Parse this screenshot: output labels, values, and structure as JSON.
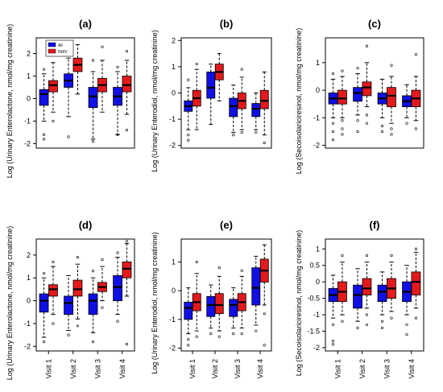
{
  "chart_data": [
    {
      "type": "box",
      "title": "(a)",
      "ylabel": "Log (Urinary Enterolactone, nmol/mg creatinine)",
      "ylim": [
        -2.2,
        2.7
      ],
      "yticks": [
        -2,
        -1,
        0,
        1,
        2
      ],
      "legend": {
        "placement": "top-left",
        "entries": [
          {
            "label": "All",
            "color": "#1010e6"
          },
          {
            "label": "NWV",
            "color": "#e31a1c"
          }
        ]
      },
      "boxes": [
        {
          "visit": 1,
          "group": "blue",
          "whislo": -1.0,
          "q1": -0.3,
          "med": 0.2,
          "q3": 0.4,
          "whishi": 1.1,
          "fliers": [
            -1.8,
            -1.6,
            1.3
          ]
        },
        {
          "visit": 1,
          "group": "red",
          "whislo": -0.6,
          "q1": 0.3,
          "med": 0.6,
          "q3": 0.8,
          "whishi": 1.6,
          "fliers": [
            -1.0,
            2.0
          ]
        },
        {
          "visit": 2,
          "group": "blue",
          "whislo": -0.8,
          "q1": 0.5,
          "med": 0.8,
          "q3": 1.1,
          "whishi": 1.8,
          "fliers": [
            -1.7
          ]
        },
        {
          "visit": 2,
          "group": "red",
          "whislo": 0.2,
          "q1": 1.2,
          "med": 1.5,
          "q3": 1.8,
          "whishi": 2.4,
          "fliers": []
        },
        {
          "visit": 3,
          "group": "blue",
          "whislo": -1.8,
          "q1": -0.4,
          "med": 0.1,
          "q3": 0.5,
          "whishi": 1.2,
          "fliers": [
            -1.9,
            1.7
          ]
        },
        {
          "visit": 3,
          "group": "red",
          "whislo": -0.6,
          "q1": 0.3,
          "med": 0.6,
          "q3": 0.9,
          "whishi": 1.7,
          "fliers": [
            2.3
          ]
        },
        {
          "visit": 4,
          "group": "blue",
          "whislo": -1.6,
          "q1": -0.3,
          "med": 0.1,
          "q3": 0.5,
          "whishi": 1.2,
          "fliers": [
            -1.6,
            1.4
          ]
        },
        {
          "visit": 4,
          "group": "red",
          "whislo": -0.7,
          "q1": 0.3,
          "med": 0.6,
          "q3": 1.0,
          "whishi": 1.7,
          "fliers": [
            -1.4,
            2.1
          ]
        }
      ]
    },
    {
      "type": "box",
      "title": "(b)",
      "ylabel": "Log (Urinary Enterodiol, nmol/mg creatinine)",
      "ylim": [
        -2.1,
        2.1
      ],
      "yticks": [
        -2,
        -1,
        0,
        1,
        2
      ],
      "boxes": [
        {
          "visit": 1,
          "group": "blue",
          "whislo": -1.4,
          "q1": -0.7,
          "med": -0.5,
          "q3": -0.3,
          "whishi": 0.2,
          "fliers": [
            -1.6,
            -1.8,
            0.5
          ]
        },
        {
          "visit": 1,
          "group": "red",
          "whislo": -1.4,
          "q1": -0.5,
          "med": -0.2,
          "q3": 0.1,
          "whishi": 0.9,
          "fliers": [
            1.1
          ]
        },
        {
          "visit": 2,
          "group": "blue",
          "whislo": -1.2,
          "q1": -0.2,
          "med": 0.2,
          "q3": 0.8,
          "whishi": 1.1,
          "fliers": []
        },
        {
          "visit": 2,
          "group": "red",
          "whislo": -0.3,
          "q1": 0.5,
          "med": 0.8,
          "q3": 1.1,
          "whishi": 1.5,
          "fliers": []
        },
        {
          "visit": 3,
          "group": "blue",
          "whislo": -1.5,
          "q1": -0.9,
          "med": -0.5,
          "q3": -0.2,
          "whishi": 0.3,
          "fliers": [
            -1.6
          ]
        },
        {
          "visit": 3,
          "group": "red",
          "whislo": -1.4,
          "q1": -0.6,
          "med": -0.3,
          "q3": 0.0,
          "whishi": 0.6,
          "fliers": [
            -1.5,
            0.9
          ]
        },
        {
          "visit": 4,
          "group": "blue",
          "whislo": -1.4,
          "q1": -0.9,
          "med": -0.6,
          "q3": -0.4,
          "whishi": 0.0,
          "fliers": [
            -1.5
          ]
        },
        {
          "visit": 4,
          "group": "red",
          "whislo": -1.6,
          "q1": -0.6,
          "med": -0.3,
          "q3": 0.1,
          "whishi": 0.8,
          "fliers": [
            -1.9
          ]
        }
      ]
    },
    {
      "type": "box",
      "title": "(c)",
      "ylabel": "Log (Secoisolariciresinol, nmol/mg creatinine)",
      "ylim": [
        -2.1,
        1.9
      ],
      "yticks": [
        -2,
        -1,
        0,
        1
      ],
      "boxes": [
        {
          "visit": 1,
          "group": "blue",
          "whislo": -1.0,
          "q1": -0.5,
          "med": -0.3,
          "q3": -0.1,
          "whishi": 0.4,
          "fliers": [
            -1.2,
            -1.5,
            -1.8,
            0.6
          ]
        },
        {
          "visit": 1,
          "group": "red",
          "whislo": -1.0,
          "q1": -0.5,
          "med": -0.3,
          "q3": 0.0,
          "whishi": 0.5,
          "fliers": [
            -1.1,
            -1.4,
            -1.6,
            0.7
          ]
        },
        {
          "visit": 2,
          "group": "blue",
          "whislo": -0.9,
          "q1": -0.4,
          "med": -0.1,
          "q3": 0.1,
          "whishi": 0.6,
          "fliers": [
            -1.1,
            -1.5,
            0.8
          ]
        },
        {
          "visit": 2,
          "group": "red",
          "whislo": -0.6,
          "q1": -0.2,
          "med": 0.1,
          "q3": 0.3,
          "whishi": 1.0,
          "fliers": [
            -0.9,
            -1.2,
            1.6
          ]
        },
        {
          "visit": 3,
          "group": "blue",
          "whislo": -1.0,
          "q1": -0.5,
          "med": -0.3,
          "q3": -0.1,
          "whishi": 0.4,
          "fliers": [
            -1.3,
            -1.5
          ]
        },
        {
          "visit": 3,
          "group": "red",
          "whislo": -1.2,
          "q1": -0.6,
          "med": -0.2,
          "q3": 0.1,
          "whishi": 0.5,
          "fliers": [
            -1.4,
            -1.6,
            0.9
          ]
        },
        {
          "visit": 4,
          "group": "blue",
          "whislo": -1.0,
          "q1": -0.6,
          "med": -0.4,
          "q3": -0.2,
          "whishi": 0.2,
          "fliers": [
            -1.2
          ]
        },
        {
          "visit": 4,
          "group": "red",
          "whislo": -1.1,
          "q1": -0.6,
          "med": -0.3,
          "q3": 0.0,
          "whishi": 0.5,
          "fliers": [
            -1.4,
            1.3
          ]
        }
      ]
    },
    {
      "type": "box",
      "title": "(d)",
      "ylabel": "Log (Urinary Enterolactone, nmol/mg creatinine)",
      "ylim": [
        -2.2,
        2.7
      ],
      "yticks": [
        -2,
        -1,
        0,
        1,
        2
      ],
      "xticks": [
        "Visit 1",
        "Visit 2",
        "Visit 3",
        "Visit 4"
      ],
      "boxes": [
        {
          "visit": 1,
          "group": "blue",
          "whislo": -1.6,
          "q1": -0.5,
          "med": 0.0,
          "q3": 0.3,
          "whishi": 1.0,
          "fliers": [
            -1.8,
            1.2
          ]
        },
        {
          "visit": 1,
          "group": "red",
          "whislo": -0.6,
          "q1": 0.2,
          "med": 0.5,
          "q3": 0.7,
          "whishi": 1.5,
          "fliers": [
            -1.0,
            1.7
          ]
        },
        {
          "visit": 2,
          "group": "blue",
          "whislo": -1.3,
          "q1": -0.6,
          "med": -0.1,
          "q3": 0.2,
          "whishi": 1.1,
          "fliers": [
            -1.5
          ]
        },
        {
          "visit": 2,
          "group": "red",
          "whislo": -0.8,
          "q1": 0.2,
          "med": 0.5,
          "q3": 0.9,
          "whishi": 1.6,
          "fliers": [
            -1.1,
            1.9
          ]
        },
        {
          "visit": 3,
          "group": "blue",
          "whislo": -1.4,
          "q1": -0.6,
          "med": 0.0,
          "q3": 0.3,
          "whishi": 1.0,
          "fliers": [
            -1.8,
            1.3
          ]
        },
        {
          "visit": 3,
          "group": "red",
          "whislo": 0.0,
          "q1": 0.4,
          "med": 0.6,
          "q3": 0.8,
          "whishi": 1.5,
          "fliers": [
            -0.3,
            1.8
          ]
        },
        {
          "visit": 4,
          "group": "blue",
          "whislo": -0.6,
          "q1": 0.0,
          "med": 0.6,
          "q3": 1.1,
          "whishi": 1.9,
          "fliers": [
            -0.9,
            2.1
          ]
        },
        {
          "visit": 4,
          "group": "red",
          "whislo": 0.2,
          "q1": 1.0,
          "med": 1.4,
          "q3": 1.7,
          "whishi": 2.5,
          "fliers": [
            -1.9,
            2.6
          ]
        }
      ]
    },
    {
      "type": "box",
      "title": "(e)",
      "ylabel": "Log (Urinary Enterodiol, nmol/mg creatinine)",
      "ylim": [
        -2.1,
        1.8
      ],
      "yticks": [
        -2,
        -1,
        0,
        1
      ],
      "xticks": [
        "Visit 1",
        "Visit 2",
        "Visit 3",
        "Visit 4"
      ],
      "boxes": [
        {
          "visit": 1,
          "group": "blue",
          "whislo": -1.5,
          "q1": -1.0,
          "med": -0.6,
          "q3": -0.4,
          "whishi": 0.1,
          "fliers": [
            -1.7,
            -1.9
          ]
        },
        {
          "visit": 1,
          "group": "red",
          "whislo": -1.4,
          "q1": -0.7,
          "med": -0.4,
          "q3": -0.1,
          "whishi": 0.6,
          "fliers": [
            -1.6,
            1.0
          ]
        },
        {
          "visit": 2,
          "group": "blue",
          "whislo": -1.3,
          "q1": -0.9,
          "med": -0.5,
          "q3": -0.2,
          "whishi": 0.2,
          "fliers": [
            -1.5
          ]
        },
        {
          "visit": 2,
          "group": "red",
          "whislo": -1.4,
          "q1": -0.8,
          "med": -0.5,
          "q3": -0.1,
          "whishi": 0.5,
          "fliers": [
            -1.6,
            0.8
          ]
        },
        {
          "visit": 3,
          "group": "blue",
          "whislo": -1.3,
          "q1": -0.9,
          "med": -0.5,
          "q3": -0.3,
          "whishi": 0.1,
          "fliers": [
            -1.5
          ]
        },
        {
          "visit": 3,
          "group": "red",
          "whislo": -1.3,
          "q1": -0.7,
          "med": -0.4,
          "q3": -0.1,
          "whishi": 0.5,
          "fliers": [
            -1.5,
            0.7
          ]
        },
        {
          "visit": 4,
          "group": "blue",
          "whislo": -1.2,
          "q1": -0.5,
          "med": 0.1,
          "q3": 0.8,
          "whishi": 1.2,
          "fliers": [
            -1.4
          ]
        },
        {
          "visit": 4,
          "group": "red",
          "whislo": -0.5,
          "q1": 0.3,
          "med": 0.7,
          "q3": 1.1,
          "whishi": 1.6,
          "fliers": [
            -0.8,
            -1.9
          ]
        }
      ]
    },
    {
      "type": "box",
      "title": "(f)",
      "ylabel": "Log (Secoisolariciresinol, nmol/mg creatinine)",
      "ylim": [
        -2.1,
        1.3
      ],
      "yticks": [
        -2.0,
        -1.5,
        -1.0,
        -0.5,
        0.0,
        0.5,
        1.0
      ],
      "xticks": [
        "Visit 1",
        "Visit 2",
        "Visit 3",
        "Visit 4"
      ],
      "boxes": [
        {
          "visit": 1,
          "group": "blue",
          "whislo": -1.1,
          "q1": -0.6,
          "med": -0.4,
          "q3": -0.2,
          "whishi": 0.2,
          "fliers": [
            -1.3,
            -1.8,
            -1.9
          ]
        },
        {
          "visit": 1,
          "group": "red",
          "whislo": -1.0,
          "q1": -0.6,
          "med": -0.3,
          "q3": 0.0,
          "whishi": 0.6,
          "fliers": [
            -1.2,
            0.8
          ]
        },
        {
          "visit": 2,
          "group": "blue",
          "whislo": -1.2,
          "q1": -0.8,
          "med": -0.4,
          "q3": -0.1,
          "whishi": 0.4,
          "fliers": [
            -1.4
          ]
        },
        {
          "visit": 2,
          "group": "red",
          "whislo": -0.8,
          "q1": -0.4,
          "med": -0.2,
          "q3": 0.1,
          "whishi": 0.6,
          "fliers": [
            -1.0,
            -1.3,
            0.8
          ]
        },
        {
          "visit": 3,
          "group": "blue",
          "whislo": -1.0,
          "q1": -0.6,
          "med": -0.3,
          "q3": -0.1,
          "whishi": 0.3,
          "fliers": [
            -1.2,
            -1.4
          ]
        },
        {
          "visit": 3,
          "group": "red",
          "whislo": -0.9,
          "q1": -0.5,
          "med": -0.2,
          "q3": 0.1,
          "whishi": 0.6,
          "fliers": [
            -1.1,
            0.8
          ]
        },
        {
          "visit": 4,
          "group": "blue",
          "whislo": -1.0,
          "q1": -0.6,
          "med": -0.3,
          "q3": 0.0,
          "whishi": 0.5,
          "fliers": [
            -1.3,
            -1.6
          ]
        },
        {
          "visit": 4,
          "group": "red",
          "whislo": -0.8,
          "q1": -0.4,
          "med": 0.0,
          "q3": 0.3,
          "whishi": 0.9,
          "fliers": [
            -1.1,
            1.0
          ]
        }
      ]
    }
  ],
  "colors": {
    "blue": "#1010e6",
    "red": "#e31a1c"
  }
}
